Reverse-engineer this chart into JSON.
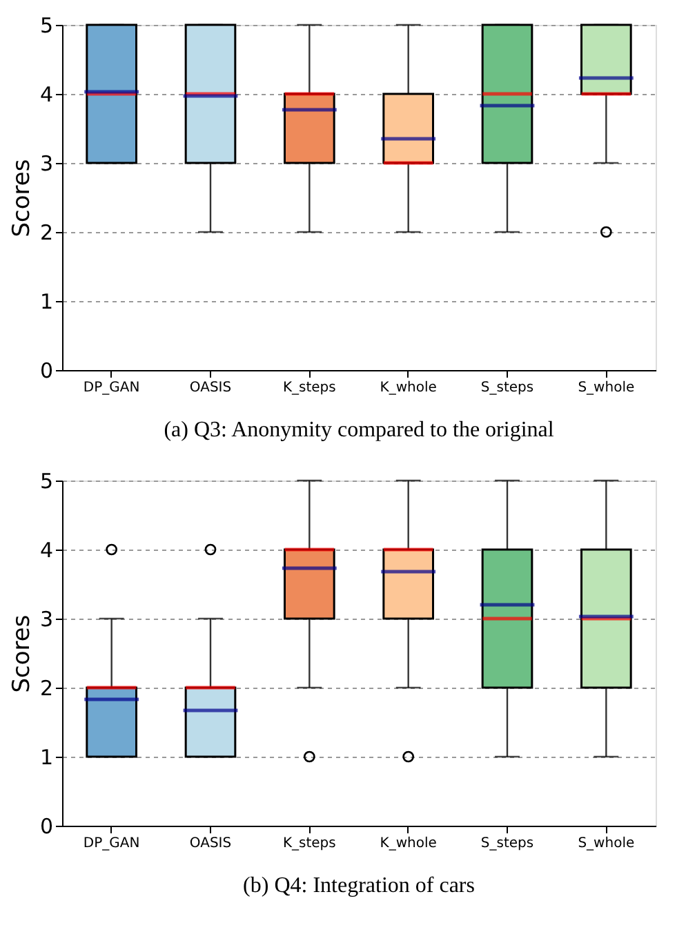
{
  "chart_data": [
    {
      "type": "box",
      "title": "(a) Q3: Anonymity compared to the original",
      "ylabel": "Scores",
      "categories": [
        "DP_GAN",
        "OASIS",
        "K_steps",
        "K_whole",
        "S_steps",
        "S_whole"
      ],
      "colors": [
        "#70a8d0",
        "#bcdcea",
        "#ee8a5a",
        "#fdc696",
        "#6dbf85",
        "#bce4b5"
      ],
      "boxes": [
        {
          "low": 3,
          "q1": 3,
          "median": 4,
          "q3": 5,
          "high": 5,
          "mean": 4.03
        },
        {
          "low": 2,
          "q1": 3,
          "median": 4,
          "q3": 5,
          "high": 5,
          "mean": 3.97
        },
        {
          "low": 2,
          "q1": 3,
          "median": 4,
          "q3": 4,
          "high": 5,
          "mean": 3.77
        },
        {
          "low": 2,
          "q1": 3,
          "median": 3,
          "q3": 4,
          "high": 5,
          "mean": 3.35
        },
        {
          "low": 2,
          "q1": 3,
          "median": 4,
          "q3": 5,
          "high": 5,
          "mean": 3.83
        },
        {
          "low": 3,
          "q1": 4,
          "median": 4,
          "q3": 5,
          "high": 5,
          "mean": 4.23,
          "outliers": [
            2
          ]
        }
      ],
      "ylim": [
        0,
        5
      ],
      "yticks": [
        0,
        1,
        2,
        3,
        4,
        5
      ],
      "grid": "y"
    },
    {
      "type": "box",
      "title": "(b) Q4: Integration of cars",
      "ylabel": "Scores",
      "categories": [
        "DP_GAN",
        "OASIS",
        "K_steps",
        "K_whole",
        "S_steps",
        "S_whole"
      ],
      "colors": [
        "#70a8d0",
        "#bcdcea",
        "#ee8a5a",
        "#fdc696",
        "#6dbf85",
        "#bce4b5"
      ],
      "boxes": [
        {
          "low": 1,
          "q1": 1,
          "median": 2,
          "q3": 2,
          "high": 3,
          "mean": 1.83,
          "outliers": [
            4
          ]
        },
        {
          "low": 1,
          "q1": 1,
          "median": 2,
          "q3": 2,
          "high": 3,
          "mean": 1.67,
          "outliers": [
            4
          ]
        },
        {
          "low": 2,
          "q1": 3,
          "median": 4,
          "q3": 4,
          "high": 5,
          "mean": 3.73,
          "outliers": [
            1
          ]
        },
        {
          "low": 2,
          "q1": 3,
          "median": 4,
          "q3": 4,
          "high": 5,
          "mean": 3.68,
          "outliers": [
            1
          ]
        },
        {
          "low": 1,
          "q1": 2,
          "median": 3,
          "q3": 4,
          "high": 5,
          "mean": 3.2
        },
        {
          "low": 1,
          "q1": 2,
          "median": 3,
          "q3": 4,
          "high": 5,
          "mean": 3.03
        }
      ],
      "ylim": [
        0,
        5
      ],
      "yticks": [
        0,
        1,
        2,
        3,
        4,
        5
      ],
      "grid": "y"
    }
  ]
}
